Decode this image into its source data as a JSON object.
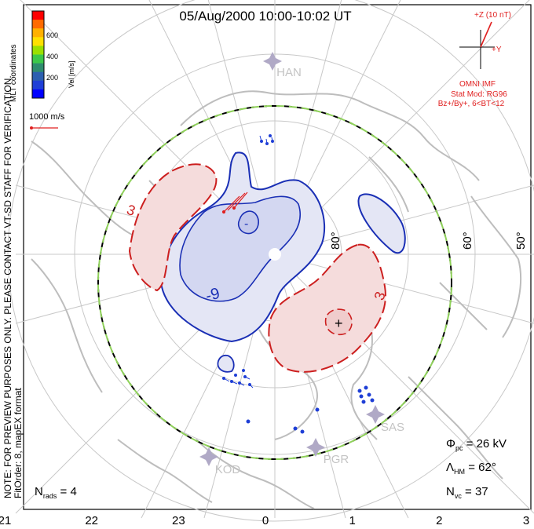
{
  "title": "05/Aug/2000 10:00-10:02 UT",
  "colorbar": {
    "label": "Vel [m/s]",
    "ticks": [
      "600",
      "400",
      "200"
    ],
    "colors": [
      "#ff0000",
      "#ff6a00",
      "#ffb000",
      "#ffe000",
      "#9be000",
      "#3cc84a",
      "#2e8c6e",
      "#2c5fb0",
      "#1f3fd6",
      "#0000ff"
    ]
  },
  "coord_label": "MLT coordinates",
  "scale_label": "1000 m/s",
  "note_line1": "NOTE: FOR PREVIEW PURPOSES ONLY. PLEASE CONTACT VT-SD STAFF FOR VERIFICATION.",
  "note_line2": "FitOrder: 8, mapEX format",
  "imf": {
    "z_label": "+Z (10 nT)",
    "y_label": "+Y",
    "source": "OMNI IMF",
    "stat_mod": "Stat Mod: RG96",
    "condition": "Bz+/By+, 6<BT<12"
  },
  "latitudes": [
    "80°",
    "60°",
    "50°"
  ],
  "stations": [
    "HAN",
    "SAS",
    "PGR",
    "KOD"
  ],
  "contour_labels": {
    "neg": [
      "-9",
      "-"
    ],
    "pos": [
      "3",
      "3",
      "+"
    ]
  },
  "stats": {
    "phi_pc": "26 kV",
    "lambda_hm": "62°",
    "n_vc": "37",
    "n_rads": "4"
  },
  "mlt_axis": [
    "21",
    "22",
    "23",
    "0",
    "1",
    "2",
    "3"
  ],
  "colors": {
    "neg_contour": "#1a2fb5",
    "neg_fill": "#e6e8f5",
    "neg_fill_inner": "#d6d9f2",
    "pos_contour": "#cc1f1f",
    "pos_fill": "#f7dede",
    "coastline": "#bfbfbf",
    "grid": "#c8c8c8",
    "hmb_dash": "#8fd15a"
  }
}
